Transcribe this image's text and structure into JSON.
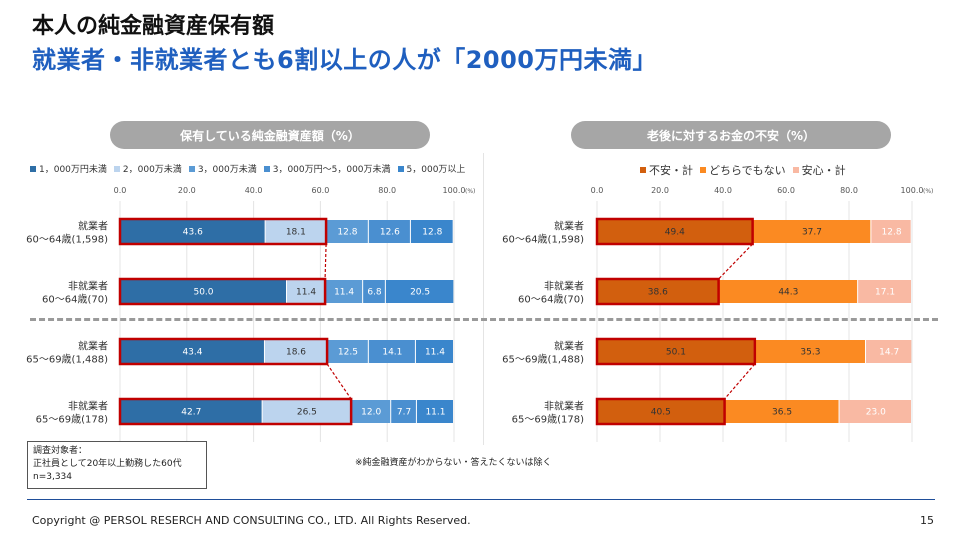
{
  "header": {
    "title": "本人の純金融資産保有額",
    "subtitle": "就業者・非就業者とも6割以上の人が「2000万円未満」"
  },
  "left_panel": {
    "pill": "保有している純金融資産額（%）"
  },
  "right_panel": {
    "pill": "老後に対するお金の不安（%）"
  },
  "colors": {
    "left": [
      "#2e6ea6",
      "#bcd4ee",
      "#5b9bd5",
      "#4a8fd0",
      "#3a86cc"
    ],
    "right": [
      "#d25f0e",
      "#fb8a22",
      "#f9b9a3"
    ],
    "highlight": "#c00000"
  },
  "chart_data": [
    {
      "type": "bar",
      "orientation": "horizontal",
      "stacked": true,
      "title": "保有している純金融資産額（%）",
      "categories": [
        "就業者\n60～64歳(1,598)",
        "非就業者\n60～64歳(70)",
        "就業者\n65～69歳(1,488)",
        "非就業者\n65～69歳(178)"
      ],
      "series": [
        {
          "name": "1，000万円未満",
          "values": [
            43.6,
            50.0,
            43.4,
            42.7
          ]
        },
        {
          "name": "2，000万未満",
          "values": [
            18.1,
            11.4,
            18.6,
            26.5
          ]
        },
        {
          "name": "3，000万未満",
          "values": [
            12.8,
            11.4,
            12.5,
            12.0
          ]
        },
        {
          "name": "3，000万円～5，000万未満",
          "values": [
            12.6,
            6.8,
            14.1,
            7.7
          ]
        },
        {
          "name": "5，000万以上",
          "values": [
            12.8,
            20.5,
            11.4,
            11.1
          ]
        }
      ],
      "labels": [
        [
          "43.6",
          "18.1",
          "12.8",
          "12.6",
          "12.8"
        ],
        [
          "50.0",
          "11.4",
          "11.4",
          "6.8",
          "20.5"
        ],
        [
          "43.4",
          "18.6",
          "12.5",
          "14.1",
          "11.4"
        ],
        [
          "42.7",
          "26.5",
          "12.0",
          "7.7",
          "11.1"
        ]
      ],
      "xlim": [
        0,
        100
      ],
      "ticks": [
        "0.0",
        "20.0",
        "40.0",
        "60.0",
        "80.0",
        "100.0"
      ],
      "tick_unit": "(%)",
      "legend": "top"
    },
    {
      "type": "bar",
      "orientation": "horizontal",
      "stacked": true,
      "title": "老後に対するお金の不安（%）",
      "categories": [
        "就業者\n60～64歳(1,598)",
        "非就業者\n60～64歳(70)",
        "就業者\n65～69歳(1,488)",
        "非就業者\n65～69歳(178)"
      ],
      "series": [
        {
          "name": "不安・計",
          "values": [
            49.4,
            38.6,
            50.1,
            40.5
          ]
        },
        {
          "name": "どちらでもない",
          "values": [
            37.7,
            44.3,
            35.3,
            36.5
          ]
        },
        {
          "name": "安心・計",
          "values": [
            12.8,
            17.1,
            14.7,
            23.0
          ]
        }
      ],
      "labels": [
        [
          "49.4",
          "37.7",
          "12.8"
        ],
        [
          "38.6",
          "44.3",
          "17.1"
        ],
        [
          "50.1",
          "35.3",
          "14.7"
        ],
        [
          "40.5",
          "36.5",
          "23.0"
        ]
      ],
      "xlim": [
        0,
        100
      ],
      "ticks": [
        "0.0",
        "20.0",
        "40.0",
        "60.0",
        "80.0",
        "100.0"
      ],
      "tick_unit": "(%)",
      "legend": "top"
    }
  ],
  "note": {
    "label": "調査対象者：",
    "line1": "正社員として20年以上勤務した60代",
    "line2": "n=3,334"
  },
  "footnote": "※純金融資産がわからない・答えたくないは除く",
  "footer": {
    "copyright": "Copyright @ PERSOL RESERCH AND CONSULTING CO., LTD. All Rights Reserved.",
    "page": "15"
  }
}
